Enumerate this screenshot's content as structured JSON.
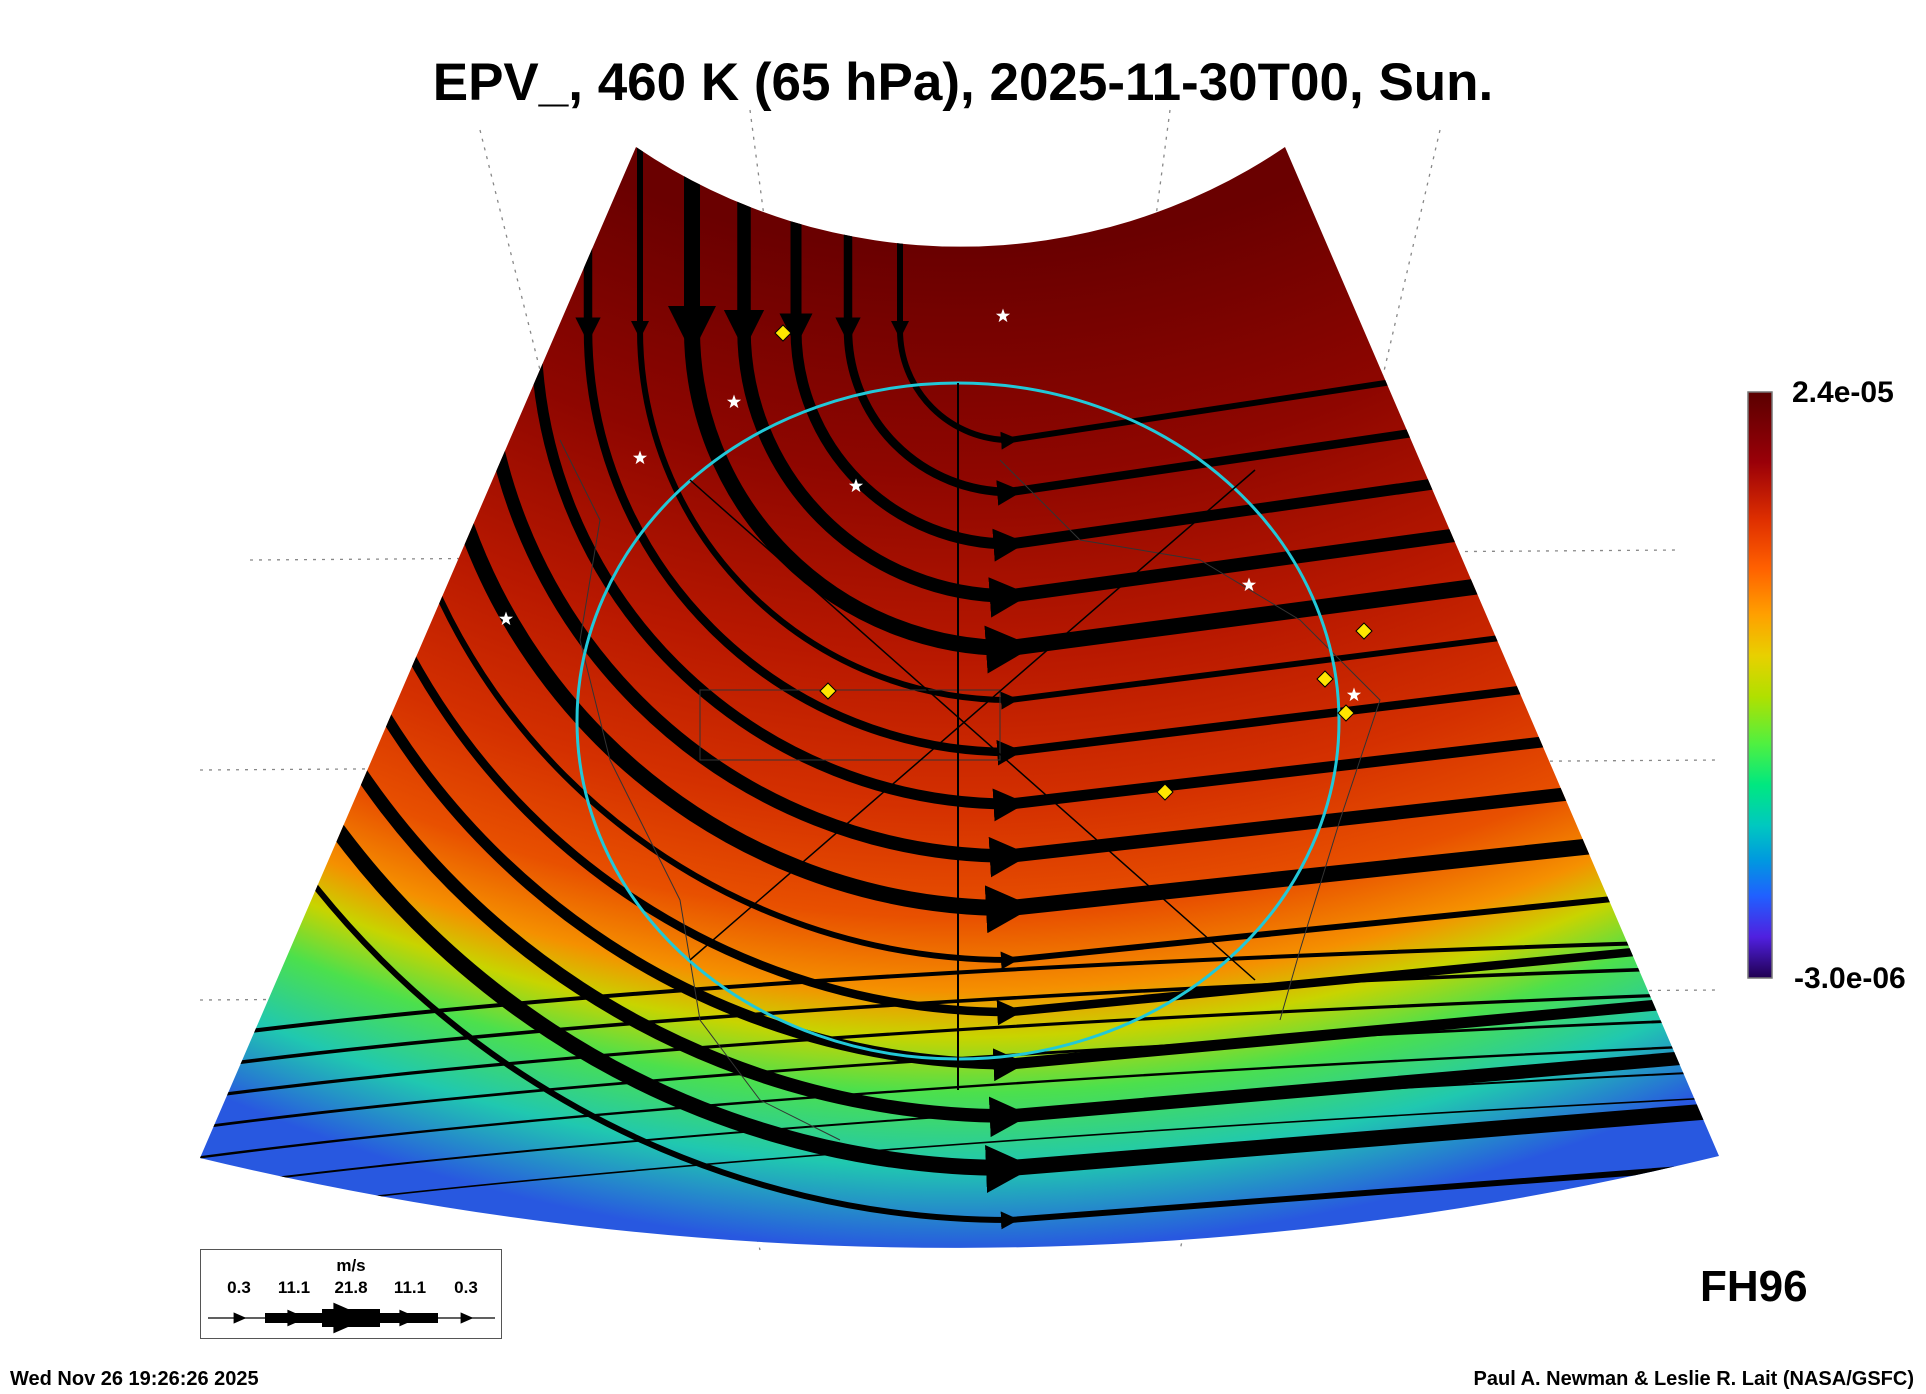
{
  "chart_data": {
    "type": "heatmap",
    "title": "EPV_, 460 K (65 hPa), 2025-11-30T00, Sun.",
    "variable": "EPV_",
    "colorbar": {
      "max_label": "2.4e-05",
      "min_label": "-3.0e-06",
      "range": [
        -3e-06,
        2.4e-05
      ],
      "colormap": "rainbow (purple-blue-green-yellow-orange-red-darkred)"
    },
    "overlay": "wind streamlines (width scaled by speed)",
    "wind_legend": {
      "unit": "m/s",
      "values": [
        "0.3",
        "11.1",
        "21.8",
        "11.1",
        "0.3"
      ]
    },
    "forecast_hour_label": "FH96"
  },
  "footer": {
    "timestamp": "Wed Nov 26 19:26:26 2025",
    "credit": "Paul A. Newman & Leslie R. Lait (NASA/GSFC)"
  },
  "colors": {
    "circle": "#22c8d8",
    "diamond": "#ffe600",
    "star": "#ffffff"
  }
}
